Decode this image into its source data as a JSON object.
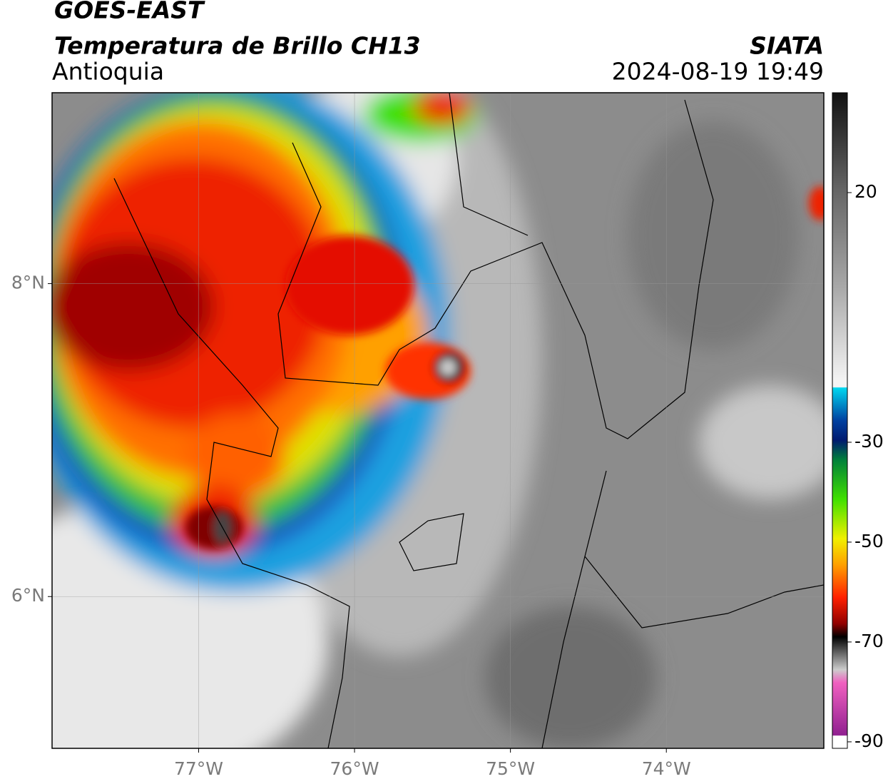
{
  "header": {
    "title": "GOES-EAST",
    "subtitle": "Temperatura de Brillo CH13",
    "region": "Antioquia",
    "source": "SIATA",
    "datetime": "2024-08-19 19:49"
  },
  "map": {
    "xlim": [
      -77.94,
      -72.99
    ],
    "ylim": [
      5.03,
      9.22
    ],
    "xticks": [
      {
        "value": -77,
        "label": "77°W"
      },
      {
        "value": -76,
        "label": "76°W"
      },
      {
        "value": -75,
        "label": "75°W"
      },
      {
        "value": -74,
        "label": "74°W"
      }
    ],
    "yticks": [
      {
        "value": 8,
        "label": "8°N"
      },
      {
        "value": 6,
        "label": "6°N"
      }
    ],
    "grid": true
  },
  "colorbar": {
    "clim": [
      -91.3,
      40
    ],
    "ticks": [
      20,
      -30,
      -50,
      -70,
      -90
    ]
  }
}
